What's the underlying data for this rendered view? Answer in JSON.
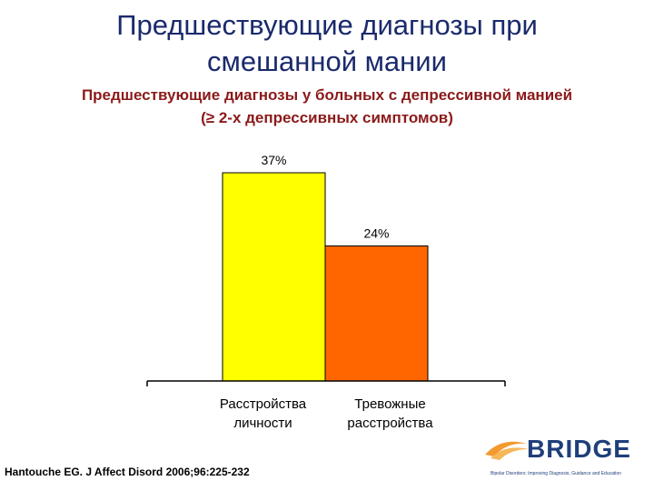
{
  "title": {
    "line1": "Предшествующие диагнозы при",
    "line2": "смешанной мании"
  },
  "subtitle": {
    "line1": "Предшествующие диагнозы у больных с депрессивной манией",
    "line2": "(≥ 2-х депрессивных симптомов)"
  },
  "chart_data": {
    "type": "bar",
    "categories": [
      [
        "Расстройства",
        "личности"
      ],
      [
        "Тревожные",
        "расстройства"
      ]
    ],
    "values": [
      37,
      24
    ],
    "data_labels": [
      "37%",
      "24%"
    ],
    "colors": [
      "#ffff00",
      "#ff6600"
    ],
    "ylim": [
      0,
      40
    ],
    "grid": false,
    "legend": "none"
  },
  "citation": "Hantouche EG. J Affect Disord 2006;96:225-232",
  "logo": {
    "word": "BRIDGE",
    "tagline": "Bipolar Disorders: Improving Diagnosis, Guidance and Education"
  }
}
